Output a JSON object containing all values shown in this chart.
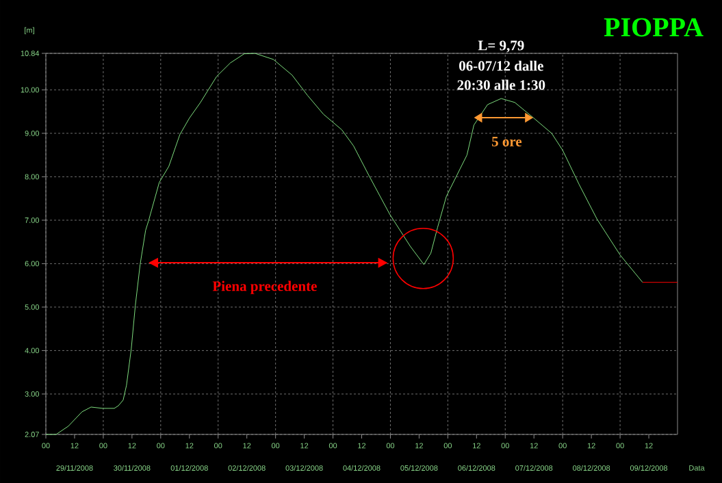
{
  "chart_data": {
    "type": "line",
    "title": "PIOPPA",
    "xlabel": "Data",
    "ylabel": "[m]",
    "xlim": [
      0,
      264
    ],
    "ylim": [
      2.07,
      10.84
    ],
    "xticks": [
      {
        "value": 0,
        "label": "00"
      },
      {
        "value": 12,
        "label": "12"
      },
      {
        "value": 24,
        "label": "00"
      },
      {
        "value": 36,
        "label": "12"
      },
      {
        "value": 48,
        "label": "00"
      },
      {
        "value": 60,
        "label": "12"
      },
      {
        "value": 72,
        "label": "00"
      },
      {
        "value": 84,
        "label": "12"
      },
      {
        "value": 96,
        "label": "00"
      },
      {
        "value": 108,
        "label": "12"
      },
      {
        "value": 120,
        "label": "00"
      },
      {
        "value": 132,
        "label": "12"
      },
      {
        "value": 144,
        "label": "00"
      },
      {
        "value": 156,
        "label": "12"
      },
      {
        "value": 168,
        "label": "00"
      },
      {
        "value": 180,
        "label": "12"
      },
      {
        "value": 192,
        "label": "00"
      },
      {
        "value": 204,
        "label": "12"
      },
      {
        "value": 216,
        "label": "00"
      },
      {
        "value": 228,
        "label": "12"
      },
      {
        "value": 240,
        "label": "00"
      },
      {
        "value": 252,
        "label": "12"
      }
    ],
    "yticks": [
      {
        "value": 2.07,
        "label": "2.07"
      },
      {
        "value": 3,
        "label": "3.00"
      },
      {
        "value": 4,
        "label": "4.00"
      },
      {
        "value": 5,
        "label": "5.00"
      },
      {
        "value": 6,
        "label": "6.00"
      },
      {
        "value": 7,
        "label": "7.00"
      },
      {
        "value": 8,
        "label": "8.00"
      },
      {
        "value": 9,
        "label": "9.00"
      },
      {
        "value": 10,
        "label": "10.00"
      },
      {
        "value": 10.84,
        "label": "10.84"
      }
    ],
    "grid": true,
    "series": [
      {
        "color": "#7ddc7d",
        "x": [
          0,
          4.3,
          9.4,
          15.1,
          18.9,
          23.7,
          28.6,
          30.3,
          32.3,
          33.7,
          35.7,
          37.4,
          39.4,
          41.7,
          42.9,
          47.4,
          51.4,
          56.0,
          60.0,
          64.6,
          71.4,
          77.1,
          82.9,
          87.4,
          95.1,
          102.9,
          109.4,
          116.0,
          123.7,
          128.6,
          135.1,
          143.7,
          152.3,
          158.0,
          160.9,
          163.7,
          167.4,
          173.1,
          176.0,
          178.9,
          184.6,
          190.3,
          196.0,
          203.7,
          211.4,
          216.0,
          222.9,
          230.3,
          240.0,
          249.4
        ],
        "values": [
          2.07,
          2.07,
          2.26,
          2.59,
          2.7,
          2.67,
          2.67,
          2.73,
          2.86,
          3.2,
          4.04,
          5.04,
          5.98,
          6.77,
          6.98,
          7.87,
          8.24,
          8.97,
          9.35,
          9.71,
          10.31,
          10.62,
          10.83,
          10.84,
          10.7,
          10.34,
          9.87,
          9.44,
          9.08,
          8.71,
          8.02,
          7.14,
          6.4,
          5.98,
          6.24,
          6.83,
          7.55,
          8.18,
          8.5,
          9.19,
          9.66,
          9.8,
          9.71,
          9.36,
          9.0,
          8.61,
          7.82,
          7.03,
          6.2,
          5.57
        ]
      },
      {
        "color": "#ff0000",
        "x": [
          249.4,
          264
        ],
        "values": [
          5.57,
          5.57
        ]
      }
    ],
    "annotations": [
      "L= 9,79",
      "06-07/12 dalle",
      "20:30 alle 1:30",
      "5 ore",
      "Piena precedente",
      "29/11/2008",
      "30/11/2008",
      "01/12/2008",
      "02/12/2008",
      "03/12/2008",
      "04/12/2008",
      "05/12/2008",
      "06/12/2008",
      "07/12/2008",
      "08/12/2008",
      "09/12/2008"
    ]
  }
}
